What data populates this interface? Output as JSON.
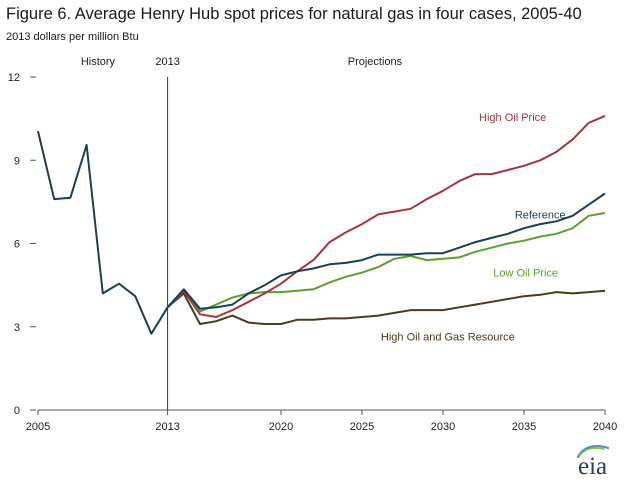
{
  "header": {
    "title": "Figure 6. Average Henry Hub spot prices for natural gas in four cases, 2005-40",
    "units": "2013 dollars per million Btu"
  },
  "logo_text": "eia",
  "chart_data": {
    "type": "line",
    "title": "Figure 6. Average Henry Hub spot prices for natural gas in four cases, 2005-40",
    "ylabel": "2013 dollars per million Btu",
    "xlabel": "",
    "xlim": [
      2005,
      2040
    ],
    "ylim": [
      0,
      12
    ],
    "x_ticks": [
      2005,
      2013,
      2020,
      2025,
      2030,
      2035,
      2040
    ],
    "y_ticks": [
      0,
      3,
      6,
      9,
      12
    ],
    "grid": false,
    "divider_year": 2013,
    "region_labels": {
      "history": "History",
      "divider": "2013",
      "projections": "Projections"
    },
    "colors": {
      "history": "#1b3f57",
      "High Oil Price": "#a8343f",
      "Reference": "#1b3f57",
      "Low Oil Price": "#5f9e2f",
      "High Oil and Gas Resource": "#4a3b1c"
    },
    "history": {
      "x": [
        2005,
        2006,
        2007,
        2008,
        2009,
        2010,
        2011,
        2012,
        2013
      ],
      "y": [
        10.05,
        7.6,
        7.65,
        9.55,
        4.2,
        4.55,
        4.1,
        2.75,
        3.7
      ]
    },
    "series": [
      {
        "name": "High Oil Price",
        "x": [
          2013,
          2014,
          2015,
          2016,
          2017,
          2018,
          2019,
          2020,
          2021,
          2022,
          2023,
          2024,
          2025,
          2026,
          2027,
          2028,
          2029,
          2030,
          2031,
          2032,
          2033,
          2034,
          2035,
          2036,
          2037,
          2038,
          2039,
          2040
        ],
        "y": [
          3.7,
          4.3,
          3.45,
          3.35,
          3.6,
          3.9,
          4.2,
          4.55,
          5.0,
          5.4,
          6.05,
          6.4,
          6.7,
          7.05,
          7.15,
          7.25,
          7.6,
          7.9,
          8.25,
          8.5,
          8.5,
          8.65,
          8.8,
          9.0,
          9.3,
          9.75,
          10.35,
          10.6
        ]
      },
      {
        "name": "Reference",
        "x": [
          2013,
          2014,
          2015,
          2016,
          2017,
          2018,
          2019,
          2020,
          2021,
          2022,
          2023,
          2024,
          2025,
          2026,
          2027,
          2028,
          2029,
          2030,
          2031,
          2032,
          2033,
          2034,
          2035,
          2036,
          2037,
          2038,
          2039,
          2040
        ],
        "y": [
          3.7,
          4.35,
          3.65,
          3.7,
          3.8,
          4.2,
          4.5,
          4.85,
          5.0,
          5.1,
          5.25,
          5.3,
          5.4,
          5.6,
          5.6,
          5.6,
          5.65,
          5.65,
          5.85,
          6.05,
          6.2,
          6.35,
          6.55,
          6.7,
          6.8,
          7.0,
          7.4,
          7.8
        ]
      },
      {
        "name": "Low Oil Price",
        "x": [
          2013,
          2014,
          2015,
          2016,
          2017,
          2018,
          2019,
          2020,
          2021,
          2022,
          2023,
          2024,
          2025,
          2026,
          2027,
          2028,
          2029,
          2030,
          2031,
          2032,
          2033,
          2034,
          2035,
          2036,
          2037,
          2038,
          2039,
          2040
        ],
        "y": [
          3.7,
          4.3,
          3.55,
          3.8,
          4.05,
          4.2,
          4.25,
          4.25,
          4.3,
          4.35,
          4.6,
          4.8,
          4.95,
          5.15,
          5.45,
          5.55,
          5.4,
          5.45,
          5.5,
          5.7,
          5.85,
          6.0,
          6.1,
          6.25,
          6.35,
          6.55,
          7.0,
          7.1
        ]
      },
      {
        "name": "High Oil and Gas Resource",
        "x": [
          2013,
          2014,
          2015,
          2016,
          2017,
          2018,
          2019,
          2020,
          2021,
          2022,
          2023,
          2024,
          2025,
          2026,
          2027,
          2028,
          2029,
          2030,
          2031,
          2032,
          2033,
          2034,
          2035,
          2036,
          2037,
          2038,
          2039,
          2040
        ],
        "y": [
          3.7,
          4.2,
          3.1,
          3.2,
          3.4,
          3.15,
          3.1,
          3.1,
          3.25,
          3.25,
          3.3,
          3.3,
          3.35,
          3.4,
          3.5,
          3.6,
          3.6,
          3.6,
          3.7,
          3.8,
          3.9,
          4.0,
          4.1,
          4.15,
          4.25,
          4.2,
          4.25,
          4.3
        ]
      }
    ]
  }
}
